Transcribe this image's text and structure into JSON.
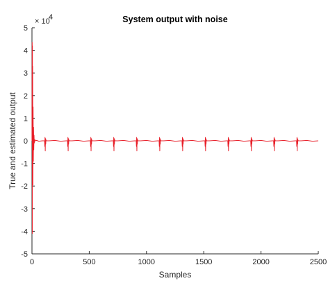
{
  "chart_data": {
    "type": "line",
    "title": "System output with noise",
    "xlabel": "Samples",
    "ylabel": "True and estimated output",
    "y_exponent_label": "× 10",
    "y_exponent_power": "4",
    "xlim": [
      0,
      2500
    ],
    "ylim": [
      -5,
      5
    ],
    "xticks": [
      0,
      500,
      1000,
      1500,
      2000,
      2500
    ],
    "yticks": [
      -5,
      -4,
      -3,
      -2,
      -1,
      0,
      1,
      2,
      3,
      4,
      5
    ],
    "grid": false,
    "series": [
      {
        "color": "#e8202a",
        "x": [
          0,
          2,
          3,
          4,
          5,
          6,
          8,
          10,
          12,
          14,
          16,
          18,
          20,
          25,
          30,
          40,
          60,
          90,
          110,
          112,
          114,
          116,
          118,
          120,
          122,
          125,
          150,
          200,
          250,
          300,
          310,
          312,
          314,
          316,
          318,
          320,
          322,
          325,
          350,
          400,
          450,
          500,
          510,
          512,
          514,
          516,
          518,
          520,
          522,
          525,
          550,
          600,
          650,
          700,
          710,
          712,
          714,
          716,
          718,
          720,
          722,
          725,
          750,
          800,
          850,
          900,
          910,
          912,
          914,
          916,
          918,
          920,
          922,
          925,
          950,
          1000,
          1050,
          1100,
          1110,
          1112,
          1114,
          1116,
          1118,
          1120,
          1122,
          1125,
          1150,
          1200,
          1250,
          1300,
          1310,
          1312,
          1314,
          1316,
          1318,
          1320,
          1322,
          1325,
          1350,
          1400,
          1450,
          1500,
          1510,
          1512,
          1514,
          1516,
          1518,
          1520,
          1522,
          1525,
          1550,
          1600,
          1650,
          1700,
          1710,
          1712,
          1714,
          1716,
          1718,
          1720,
          1722,
          1725,
          1750,
          1800,
          1850,
          1900,
          1910,
          1912,
          1914,
          1916,
          1918,
          1920,
          1922,
          1925,
          1950,
          2000,
          2050,
          2100,
          2110,
          2112,
          2114,
          2116,
          2118,
          2120,
          2122,
          2125,
          2150,
          2200,
          2250,
          2300,
          2310,
          2312,
          2314,
          2316,
          2318,
          2320,
          2322,
          2325,
          2350,
          2400,
          2450,
          2500
        ],
        "y": [
          0,
          4.35,
          -4.1,
          4.2,
          -1.9,
          3.3,
          -1.95,
          1.5,
          -0.9,
          0.6,
          -0.4,
          0.25,
          -0.1,
          0.05,
          0.0,
          0.02,
          -0.02,
          0.0,
          0.0,
          -0.25,
          0.15,
          -0.45,
          0.1,
          -0.15,
          0.05,
          0.0,
          0.0,
          0.02,
          -0.02,
          0.0,
          0.0,
          -0.25,
          0.15,
          -0.45,
          0.1,
          -0.15,
          0.05,
          0.0,
          0.0,
          0.02,
          -0.02,
          0.0,
          0.0,
          -0.25,
          0.15,
          -0.45,
          0.1,
          -0.15,
          0.05,
          0.0,
          0.0,
          0.02,
          -0.02,
          0.0,
          0.0,
          -0.25,
          0.15,
          -0.45,
          0.1,
          -0.15,
          0.05,
          0.0,
          0.0,
          0.02,
          -0.02,
          0.0,
          0.0,
          -0.25,
          0.15,
          -0.45,
          0.1,
          -0.15,
          0.05,
          0.0,
          0.0,
          0.02,
          -0.02,
          0.0,
          0.0,
          -0.25,
          0.15,
          -0.45,
          0.1,
          -0.15,
          0.05,
          0.0,
          0.0,
          0.02,
          -0.02,
          0.0,
          0.0,
          -0.25,
          0.15,
          -0.45,
          0.1,
          -0.15,
          0.05,
          0.0,
          0.0,
          0.02,
          -0.02,
          0.0,
          0.0,
          -0.25,
          0.15,
          -0.45,
          0.1,
          -0.15,
          0.05,
          0.0,
          0.0,
          0.02,
          -0.02,
          0.0,
          0.0,
          -0.25,
          0.15,
          -0.45,
          0.1,
          -0.15,
          0.05,
          0.0,
          0.0,
          0.02,
          -0.02,
          0.0,
          0.0,
          -0.25,
          0.15,
          -0.45,
          0.1,
          -0.15,
          0.05,
          0.0,
          0.0,
          0.02,
          -0.02,
          0.0,
          0.0,
          -0.25,
          0.15,
          -0.45,
          0.1,
          -0.15,
          0.05,
          0.0,
          0.0,
          0.02,
          -0.02,
          0.0,
          0.0,
          -0.25,
          0.15,
          -0.45,
          0.1,
          -0.15,
          0.05,
          0.0,
          0.0,
          0.02,
          -0.02,
          0.0
        ]
      }
    ]
  }
}
